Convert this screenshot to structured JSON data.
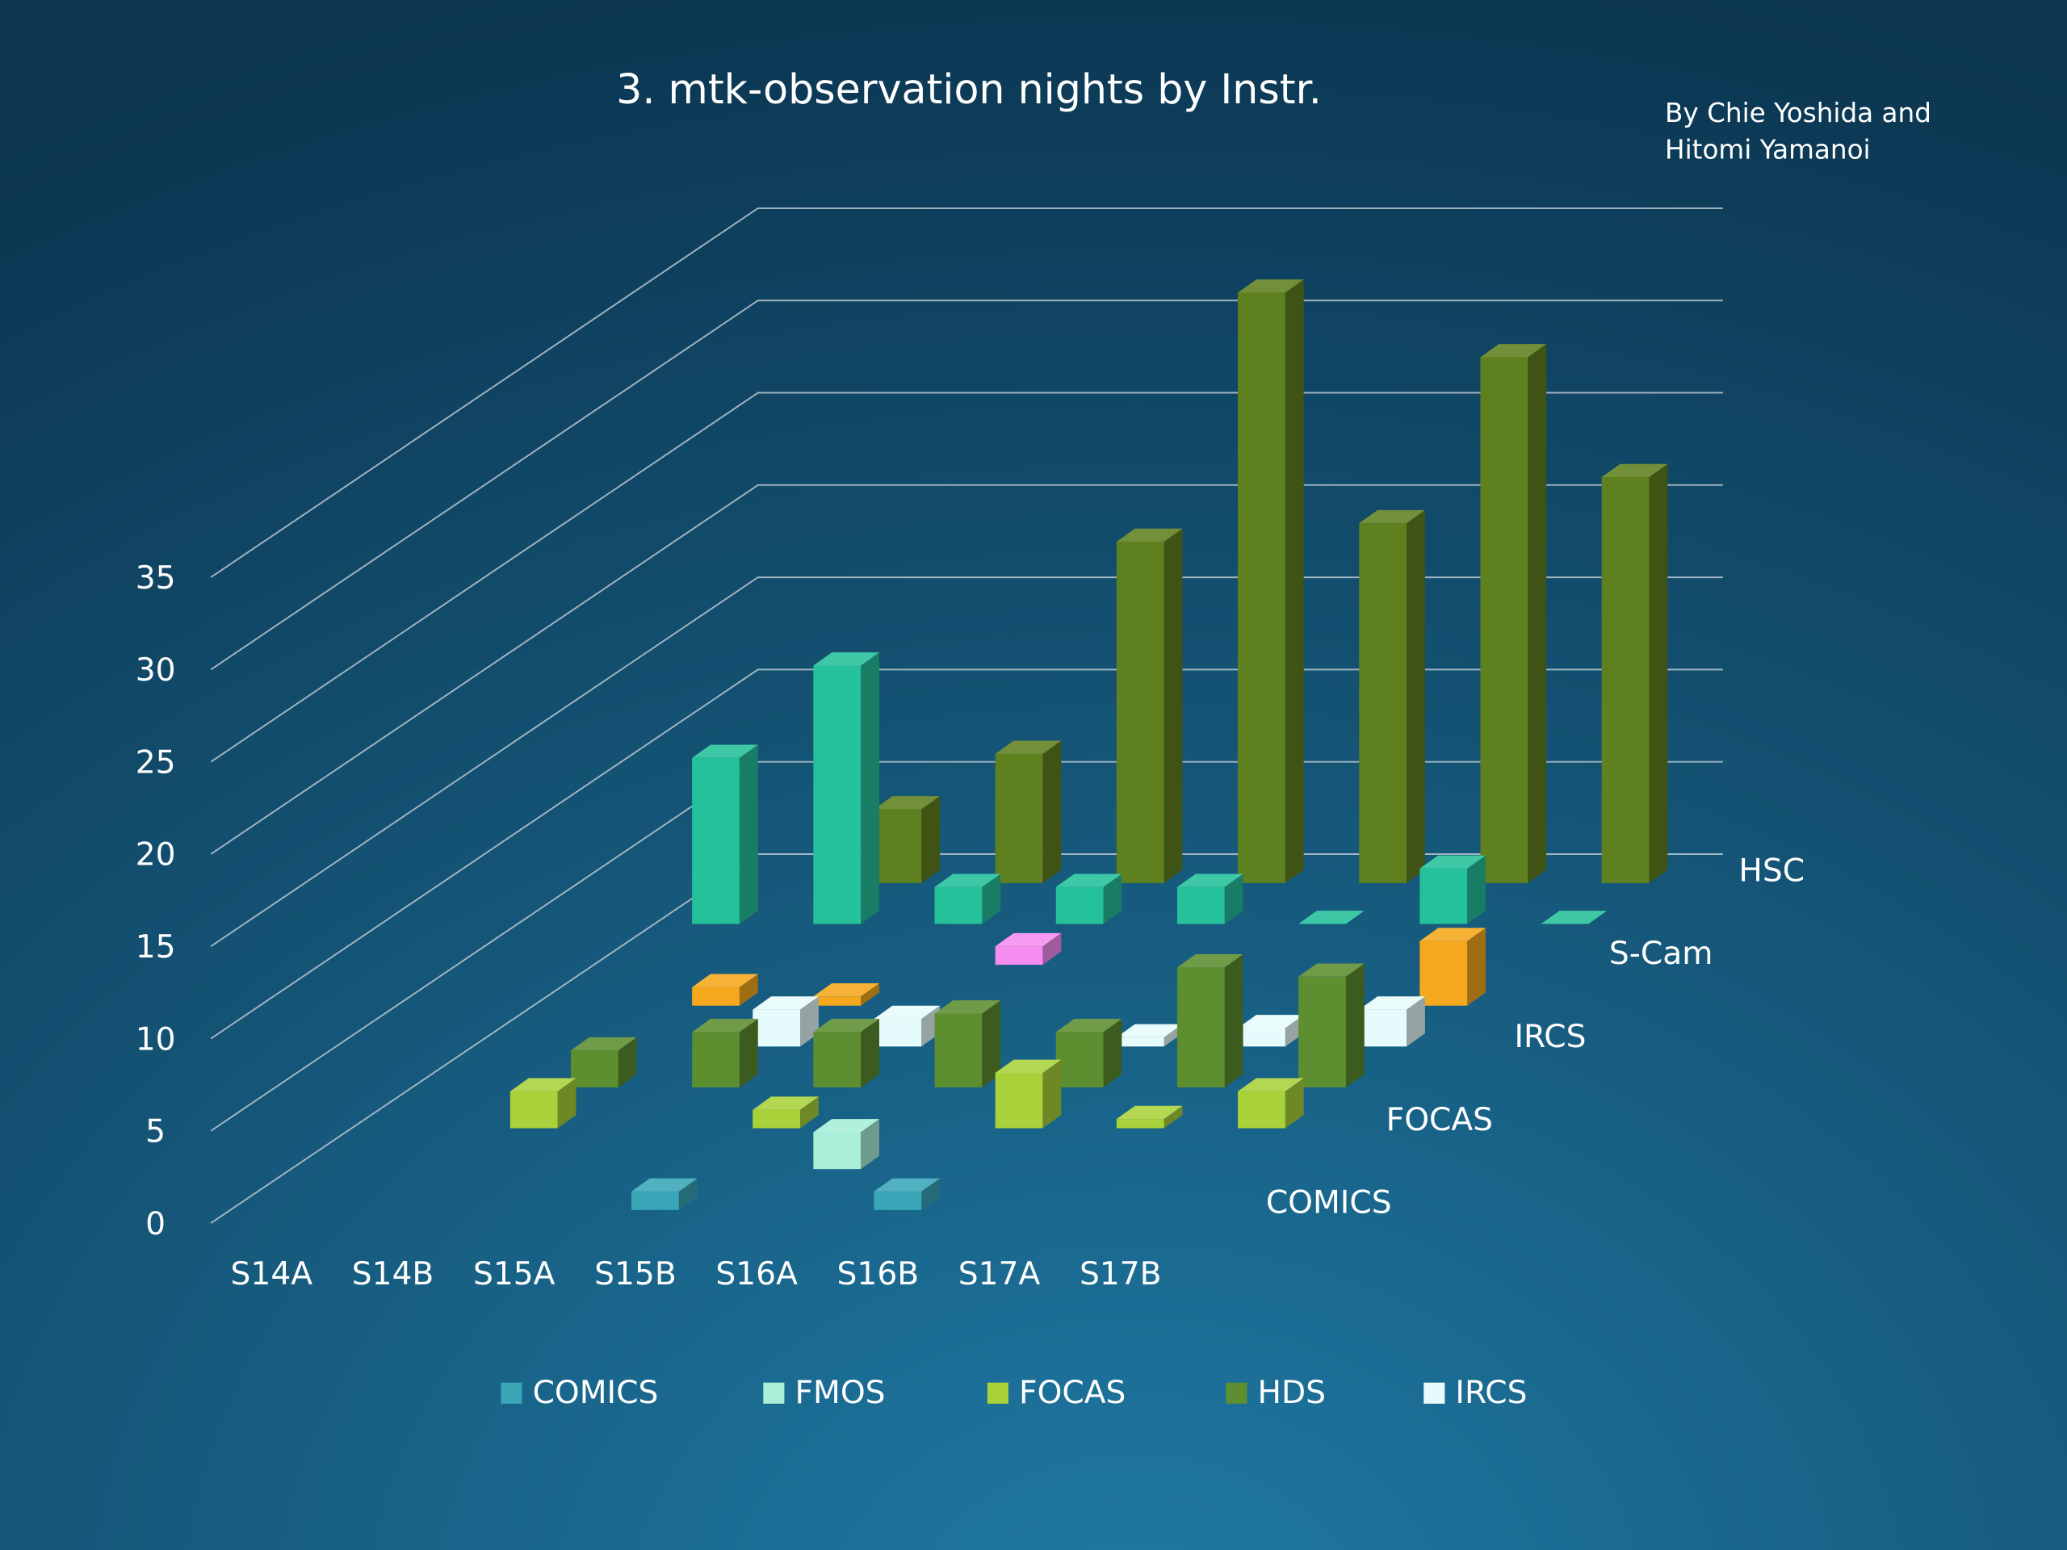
{
  "chart_data": {
    "type": "bar3d",
    "title": "3. mtk-observation nights by Instr.",
    "annotation": [
      "By Chie Yoshida and",
      "Hitomi Yamanoi"
    ],
    "categories": [
      "S14A",
      "S14B",
      "S15A",
      "S15B",
      "S16A",
      "S16B",
      "S17A",
      "S17B"
    ],
    "ylim": [
      0,
      35
    ],
    "yticks": [
      0,
      5,
      10,
      15,
      20,
      25,
      30,
      35
    ],
    "grid": true,
    "legend_position": "bottom",
    "series": [
      {
        "name": "COMICS",
        "color": "#3aa6b8",
        "in_legend": true,
        "depth_label": true,
        "values": [
          null,
          null,
          null,
          1,
          null,
          1,
          null,
          null
        ]
      },
      {
        "name": "FMOS",
        "color": "#a8eed8",
        "in_legend": true,
        "depth_label": false,
        "values": [
          null,
          null,
          null,
          null,
          2,
          null,
          null,
          null
        ]
      },
      {
        "name": "FOCAS",
        "color": "#a9d13a",
        "in_legend": true,
        "depth_label": true,
        "values": [
          null,
          2,
          null,
          1,
          null,
          3,
          0.5,
          2
        ]
      },
      {
        "name": "HDS",
        "color": "#5d8e30",
        "in_legend": true,
        "depth_label": false,
        "values": [
          null,
          2,
          3,
          3,
          4,
          3,
          6.5,
          6
        ]
      },
      {
        "name": "IRCS",
        "color": "#e6fbfb",
        "in_legend": true,
        "depth_label": true,
        "values": [
          null,
          null,
          2,
          1.5,
          null,
          0.5,
          1,
          2
        ]
      },
      {
        "name": null,
        "color": "#f5a81c",
        "in_legend": false,
        "depth_label": false,
        "values": [
          null,
          1,
          0.5,
          null,
          null,
          null,
          null,
          3.5
        ]
      },
      {
        "name": null,
        "color": "#f58cf0",
        "in_legend": false,
        "depth_label": false,
        "values": [
          null,
          null,
          null,
          1,
          null,
          null,
          null,
          null
        ]
      },
      {
        "name": "S-Cam",
        "color": "#25c19a",
        "in_legend": false,
        "depth_label": true,
        "values": [
          9,
          14,
          2,
          2,
          2,
          0,
          3,
          0
        ]
      },
      {
        "name": "HSC",
        "color": "#5f801e",
        "in_legend": false,
        "depth_label": true,
        "values": [
          null,
          4,
          7,
          18.5,
          32,
          19.5,
          28.5,
          22
        ]
      }
    ]
  }
}
